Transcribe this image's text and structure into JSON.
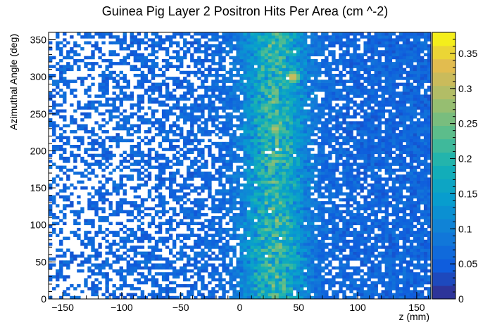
{
  "chart_data": {
    "type": "heatmap",
    "title": "Guinea Pig Layer 2 Positron Hits Per Area (cm ^-2)",
    "xlabel": "z (mm)",
    "ylabel": "Azimuthal Angle (deg)",
    "xlim": [
      -162,
      162
    ],
    "ylim": [
      0,
      360
    ],
    "zlim": [
      0,
      0.38
    ],
    "x_ticks": [
      -150,
      -100,
      -50,
      0,
      50,
      100,
      150
    ],
    "y_ticks": [
      0,
      50,
      100,
      150,
      200,
      250,
      300,
      350
    ],
    "z_ticks": [
      0,
      0.05,
      0.1,
      0.15,
      0.2,
      0.25,
      0.3,
      0.35
    ],
    "x_tick_labels": [
      "−150",
      "−100",
      "−50",
      "0",
      "50",
      "100",
      "150"
    ],
    "y_tick_labels": [
      "0",
      "50",
      "100",
      "150",
      "200",
      "250",
      "300",
      "350"
    ],
    "z_tick_labels": [
      "0",
      "0.05",
      "0.1",
      "0.15",
      "0.2",
      "0.25",
      "0.3",
      "0.35"
    ],
    "bins": {
      "x": 108,
      "y": 90
    },
    "distribution": {
      "peak_z_mm": 30,
      "peak_width_mm": 18,
      "peak_value": 0.22,
      "baseline_value": 0.06,
      "occupancy_left": 0.35,
      "occupancy_right": 0.9,
      "hot_spots": [
        {
          "z": 30,
          "phi": 230,
          "value": 0.3
        },
        {
          "z": 22,
          "phi": 258,
          "value": 0.25
        },
        {
          "z": 40,
          "phi": 290,
          "value": 0.2
        },
        {
          "z": 45,
          "phi": 300,
          "value": 0.33
        }
      ]
    },
    "colorbar": true
  }
}
